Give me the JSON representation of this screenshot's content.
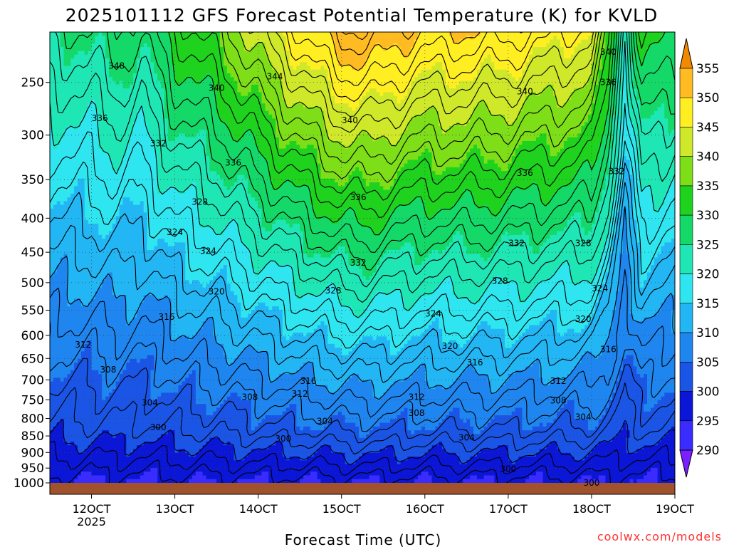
{
  "chart_data": {
    "type": "heatmap",
    "title": "2025101112 GFS Forecast Potential Temperature (K) for KVLD",
    "xlabel": "Forecast Time (UTC)",
    "ylabel": "",
    "credit": "coolwx.com/models",
    "x_ticks": [
      {
        "day": 12,
        "label": "12OCT",
        "sub": "2025"
      },
      {
        "day": 13,
        "label": "13OCT",
        "sub": ""
      },
      {
        "day": 14,
        "label": "14OCT",
        "sub": ""
      },
      {
        "day": 15,
        "label": "15OCT",
        "sub": ""
      },
      {
        "day": 16,
        "label": "16OCT",
        "sub": ""
      },
      {
        "day": 17,
        "label": "17OCT",
        "sub": ""
      },
      {
        "day": 18,
        "label": "18OCT",
        "sub": ""
      },
      {
        "day": 19,
        "label": "19OCT",
        "sub": ""
      }
    ],
    "xlim_days": [
      11.5,
      19.0
    ],
    "pressure_levels_hpa": [
      250,
      300,
      350,
      400,
      450,
      500,
      550,
      600,
      650,
      700,
      750,
      800,
      850,
      900,
      950,
      1000
    ],
    "ylim_hpa": [
      210,
      1000
    ],
    "y_scale": "log-pressure (inverted)",
    "grid": true,
    "units": "K",
    "colorbar": {
      "levels": [
        290,
        295,
        300,
        305,
        310,
        315,
        320,
        325,
        330,
        335,
        340,
        345,
        350,
        355
      ],
      "colors": [
        "#7a1fff",
        "#3a2cff",
        "#0b16d6",
        "#1a55e6",
        "#1f86f0",
        "#23b6f5",
        "#2fe6f0",
        "#1ee6b4",
        "#14d868",
        "#1ed21e",
        "#7ede18",
        "#cfe82a",
        "#ffee22",
        "#ffbb22",
        "#f08a00"
      ],
      "min_color": "#7a1fff",
      "max_color": "#f08a00"
    },
    "contour_interval_K": 2,
    "contour_labels": [
      {
        "day": 12.3,
        "p": 236,
        "v": "348"
      },
      {
        "day": 12.1,
        "p": 283,
        "v": "336"
      },
      {
        "day": 12.8,
        "p": 309,
        "v": "332"
      },
      {
        "day": 13.0,
        "p": 420,
        "v": "324"
      },
      {
        "day": 14.2,
        "p": 245,
        "v": "344"
      },
      {
        "day": 13.5,
        "p": 255,
        "v": "340"
      },
      {
        "day": 13.7,
        "p": 330,
        "v": "336"
      },
      {
        "day": 13.3,
        "p": 378,
        "v": "328"
      },
      {
        "day": 13.4,
        "p": 448,
        "v": "324"
      },
      {
        "day": 13.5,
        "p": 516,
        "v": "320"
      },
      {
        "day": 12.9,
        "p": 563,
        "v": "316"
      },
      {
        "day": 11.9,
        "p": 620,
        "v": "312"
      },
      {
        "day": 12.2,
        "p": 676,
        "v": "308"
      },
      {
        "day": 12.7,
        "p": 758,
        "v": "304"
      },
      {
        "day": 12.8,
        "p": 825,
        "v": "300"
      },
      {
        "day": 15.1,
        "p": 285,
        "v": "340"
      },
      {
        "day": 15.2,
        "p": 372,
        "v": "336"
      },
      {
        "day": 15.2,
        "p": 467,
        "v": "332"
      },
      {
        "day": 14.9,
        "p": 514,
        "v": "328"
      },
      {
        "day": 16.1,
        "p": 557,
        "v": "324"
      },
      {
        "day": 16.3,
        "p": 623,
        "v": "320"
      },
      {
        "day": 16.6,
        "p": 659,
        "v": "316"
      },
      {
        "day": 14.6,
        "p": 703,
        "v": "316"
      },
      {
        "day": 14.5,
        "p": 735,
        "v": "312"
      },
      {
        "day": 13.9,
        "p": 743,
        "v": "308"
      },
      {
        "day": 15.9,
        "p": 743,
        "v": "312"
      },
      {
        "day": 15.9,
        "p": 785,
        "v": "308"
      },
      {
        "day": 14.8,
        "p": 808,
        "v": "304"
      },
      {
        "day": 16.5,
        "p": 855,
        "v": "304"
      },
      {
        "day": 14.3,
        "p": 858,
        "v": "300"
      },
      {
        "day": 17.2,
        "p": 258,
        "v": "340"
      },
      {
        "day": 17.2,
        "p": 342,
        "v": "336"
      },
      {
        "day": 17.1,
        "p": 436,
        "v": "332"
      },
      {
        "day": 16.9,
        "p": 497,
        "v": "328"
      },
      {
        "day": 17.0,
        "p": 953,
        "v": "300"
      },
      {
        "day": 18.2,
        "p": 225,
        "v": "340"
      },
      {
        "day": 18.2,
        "p": 250,
        "v": "336"
      },
      {
        "day": 18.3,
        "p": 340,
        "v": "332"
      },
      {
        "day": 17.9,
        "p": 436,
        "v": "328"
      },
      {
        "day": 18.1,
        "p": 510,
        "v": "324"
      },
      {
        "day": 17.9,
        "p": 567,
        "v": "320"
      },
      {
        "day": 18.2,
        "p": 630,
        "v": "316"
      },
      {
        "day": 17.6,
        "p": 703,
        "v": "312"
      },
      {
        "day": 17.6,
        "p": 752,
        "v": "308"
      },
      {
        "day": 17.9,
        "p": 796,
        "v": "304"
      },
      {
        "day": 18.0,
        "p": 1000,
        "v": "300"
      }
    ]
  }
}
